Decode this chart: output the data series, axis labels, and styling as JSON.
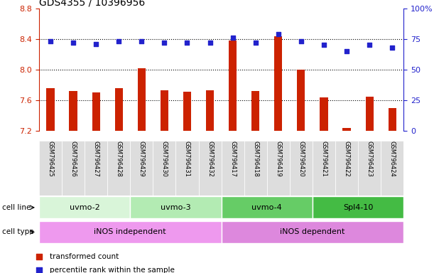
{
  "title": "GDS4355 / 10396956",
  "samples": [
    "GSM796425",
    "GSM796426",
    "GSM796427",
    "GSM796428",
    "GSM796429",
    "GSM796430",
    "GSM796431",
    "GSM796432",
    "GSM796417",
    "GSM796418",
    "GSM796419",
    "GSM796420",
    "GSM796421",
    "GSM796422",
    "GSM796423",
    "GSM796424"
  ],
  "transformed_count": [
    7.76,
    7.72,
    7.7,
    7.76,
    8.02,
    7.73,
    7.71,
    7.73,
    8.38,
    7.72,
    8.43,
    8.0,
    7.64,
    7.24,
    7.65,
    7.5
  ],
  "percentile_rank": [
    73,
    72,
    71,
    73,
    73,
    72,
    72,
    72,
    76,
    72,
    79,
    73,
    70,
    65,
    70,
    68
  ],
  "cell_line_groups": [
    {
      "label": "uvmo-2",
      "start": 0,
      "end": 3,
      "color": "#d9f5d9"
    },
    {
      "label": "uvmo-3",
      "start": 4,
      "end": 7,
      "color": "#b3ebb3"
    },
    {
      "label": "uvmo-4",
      "start": 8,
      "end": 11,
      "color": "#66cc66"
    },
    {
      "label": "Spl4-10",
      "start": 12,
      "end": 15,
      "color": "#44bb44"
    }
  ],
  "cell_type_groups": [
    {
      "label": "iNOS independent",
      "start": 0,
      "end": 7,
      "color": "#ee99ee"
    },
    {
      "label": "iNOS dependent",
      "start": 8,
      "end": 15,
      "color": "#dd88dd"
    }
  ],
  "ylim_left": [
    7.2,
    8.8
  ],
  "ylim_right": [
    0,
    100
  ],
  "bar_color": "#cc2200",
  "dot_color": "#2222cc",
  "axis_label_color_left": "#cc2200",
  "axis_label_color_right": "#2222cc",
  "title_fontsize": 10
}
